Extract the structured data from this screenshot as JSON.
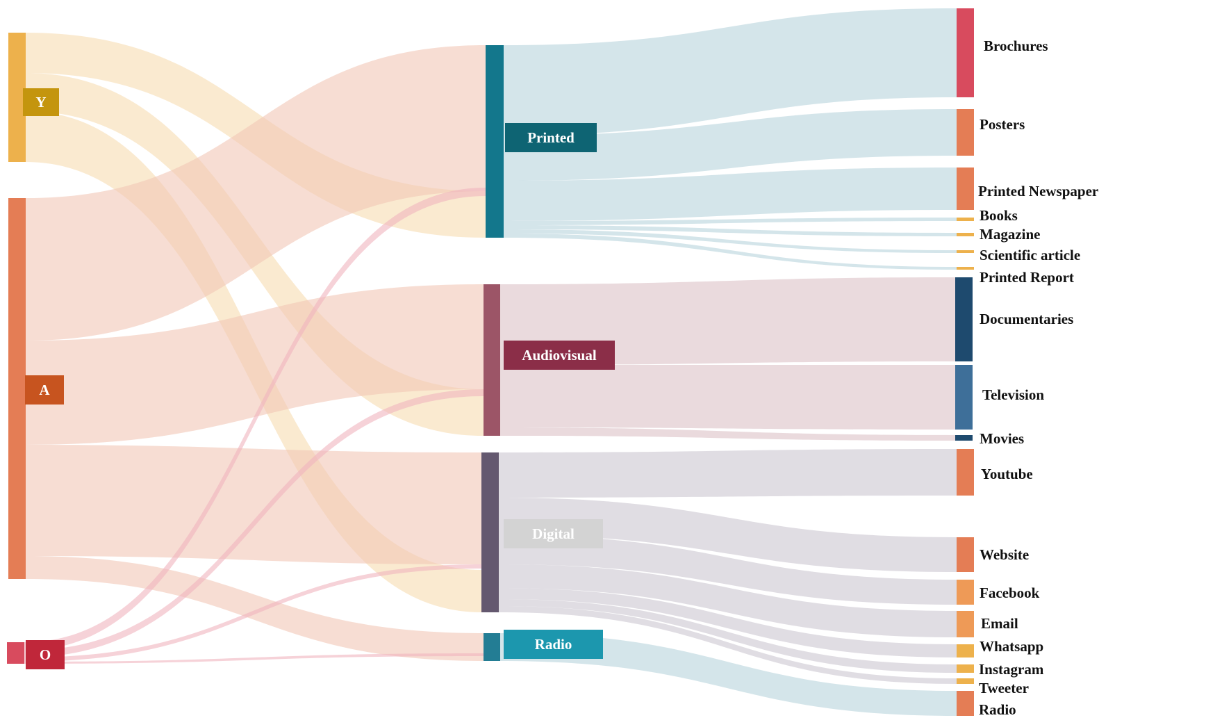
{
  "diagram": {
    "type": "sankey",
    "colors": {
      "Y": "#EDB14C",
      "A": "#E47D55",
      "O": "#D84B5E",
      "Printed": "#13778C",
      "Audiovisual": "#9C5567",
      "Digital": "#64586F",
      "Radio": "#237D94",
      "Brochures": "#D84B5E",
      "Posters": "#E47D55",
      "Printed Newspaper": "#E47D55",
      "Books": "#EDB14C",
      "Magazine": "#EDB14C",
      "Scientific article": "#EDB14C",
      "Printed Report": "#EDB14C",
      "Documentaries": "#1E4A6E",
      "Television": "#3E6F99",
      "Movies": "#1E4A6E",
      "Youtube": "#E47D55",
      "Website": "#E47D55",
      "Facebook": "#EE9A57",
      "Email": "#EE9A57",
      "Whatsapp": "#EDB14C",
      "Instagram": "#EDB14C",
      "Tweeter": "#EDB14C",
      "Radio_out": "#E47D55",
      "label_Y": "#C4950E",
      "label_A": "#C7541F",
      "label_O": "#C0273A",
      "label_Printed": "#0E6473",
      "label_Audiovisual": "#8B2E48",
      "label_Digital": "#D3D3D3",
      "label_Radio": "#1C97AE"
    },
    "left_nodes": [
      {
        "id": "Y",
        "label": "Y"
      },
      {
        "id": "A",
        "label": "A"
      },
      {
        "id": "O",
        "label": "O"
      }
    ],
    "middle_nodes": [
      {
        "id": "Printed",
        "label": "Printed"
      },
      {
        "id": "Audiovisual",
        "label": "Audiovisual"
      },
      {
        "id": "Digital",
        "label": "Digital"
      },
      {
        "id": "Radio",
        "label": "Radio"
      }
    ],
    "right_nodes": [
      {
        "id": "Brochures",
        "label": "Brochures"
      },
      {
        "id": "Posters",
        "label": "Posters"
      },
      {
        "id": "Printed Newspaper",
        "label": "Printed Newspaper"
      },
      {
        "id": "Books",
        "label": "Books"
      },
      {
        "id": "Magazine",
        "label": "Magazine"
      },
      {
        "id": "Scientific article",
        "label": "Scientific article"
      },
      {
        "id": "Printed Report",
        "label": "Printed Report"
      },
      {
        "id": "Documentaries",
        "label": "Documentaries"
      },
      {
        "id": "Television",
        "label": "Television"
      },
      {
        "id": "Movies",
        "label": "Movies"
      },
      {
        "id": "Youtube",
        "label": "Youtube"
      },
      {
        "id": "Website",
        "label": "Website"
      },
      {
        "id": "Facebook",
        "label": "Facebook"
      },
      {
        "id": "Email",
        "label": "Email"
      },
      {
        "id": "Whatsapp",
        "label": "Whatsapp"
      },
      {
        "id": "Instagram",
        "label": "Instagram"
      },
      {
        "id": "Tweeter",
        "label": "Tweeter"
      },
      {
        "id": "Radio_out",
        "label": "Radio"
      }
    ]
  }
}
